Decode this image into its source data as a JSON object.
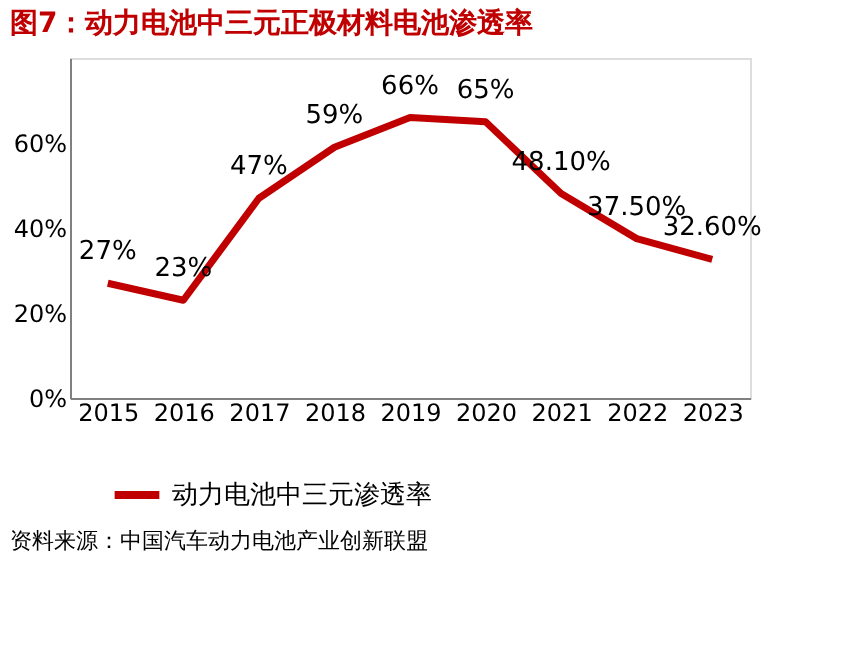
{
  "chart_data": {
    "type": "line",
    "title": "图7：动力电池中三元正极材料电池渗透率",
    "categories": [
      "2015",
      "2016",
      "2017",
      "2018",
      "2019",
      "2020",
      "2021",
      "2022",
      "2023"
    ],
    "series": [
      {
        "name": "动力电池中三元渗透率",
        "color": "#c00000",
        "values": [
          27,
          23,
          47,
          59,
          66,
          65,
          48.1,
          37.5,
          32.6
        ],
        "value_labels": [
          "27%",
          "23%",
          "47%",
          "59%",
          "66%",
          "65%",
          "48.10%",
          "37.50%",
          "32.60%"
        ]
      }
    ],
    "ylim": [
      0,
      80
    ],
    "yticks": [
      {
        "value": 0,
        "label": "0%"
      },
      {
        "value": 20,
        "label": "20%"
      },
      {
        "value": 40,
        "label": "40%"
      },
      {
        "value": 60,
        "label": "60%"
      },
      {
        "value": 80,
        "label": null
      }
    ],
    "grid": false,
    "legend": "bottom",
    "marker": "none",
    "line_style": "solid",
    "annotations": [
      "资料来源：中国汽车动力电池产业创新联盟"
    ]
  }
}
